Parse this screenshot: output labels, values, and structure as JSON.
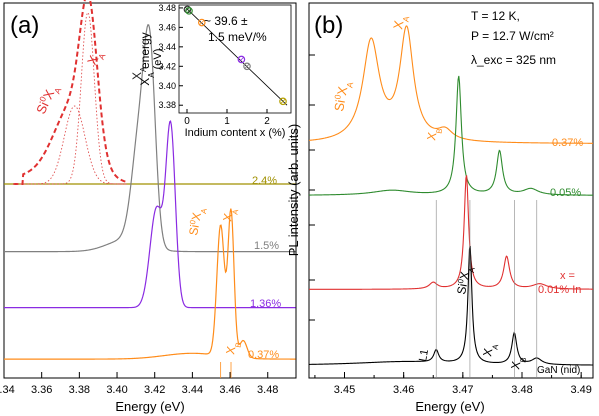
{
  "chart_data": [
    {
      "panel": "(a)",
      "type": "line",
      "xlabel": "Energy (eV)",
      "xlim": [
        3.34,
        3.495
      ],
      "xticks": [
        "3.34",
        "3.36",
        "3.38",
        "3.40",
        "3.42",
        "3.44",
        "3.46",
        "3.48"
      ],
      "series": [
        {
          "name": "2.4%",
          "color": "#e03030",
          "peak_energy": 3.384
        },
        {
          "name": "1.5%",
          "color": "#808080",
          "peak_energy": 3.418
        },
        {
          "name": "1.36%",
          "color": "#8a2be2",
          "peak_energy": 3.428
        },
        {
          "name": "0.37%",
          "color": "#ff8c1a",
          "peak_energy": 3.46
        }
      ],
      "annotations": [
        "Si⁰X_A",
        "X_A",
        "X_A",
        "Si⁰X_A",
        "X_A",
        "X_B"
      ],
      "inset": {
        "type": "scatter",
        "xlabel": "Indium content x (%)",
        "ylabel": "X_A energy (eV)",
        "xlim": [
          -0.2,
          2.6
        ],
        "ylim": [
          3.372,
          3.483
        ],
        "xticks": [
          "0",
          "1",
          "2"
        ],
        "yticks": [
          "3.38",
          "3.40",
          "3.42",
          "3.44",
          "3.46",
          "3.48"
        ],
        "points": [
          {
            "x": 0.01,
            "y": 3.4785,
            "color": "#333333"
          },
          {
            "x": 0.05,
            "y": 3.477,
            "color": "#2e8b2e"
          },
          {
            "x": 0.37,
            "y": 3.465,
            "color": "#ff8c1a"
          },
          {
            "x": 1.36,
            "y": 3.427,
            "color": "#8a2be2"
          },
          {
            "x": 1.5,
            "y": 3.42,
            "color": "#808080"
          },
          {
            "x": 2.4,
            "y": 3.384,
            "color": "#b5a000"
          }
        ],
        "fit": {
          "slope": -0.0396,
          "intercept": 3.479
        },
        "label": "~ 39.6 ±\n1.5 meV/%"
      }
    },
    {
      "panel": "(b)",
      "type": "line",
      "xlabel": "Energy (eV)",
      "ylabel": "PL intensity (arb. units)",
      "xlim": [
        3.444,
        3.492
      ],
      "xticks": [
        "3.45",
        "3.46",
        "3.47",
        "3.48",
        "3.49"
      ],
      "series": [
        {
          "name": "0.37%",
          "color": "#ff8c1a"
        },
        {
          "name": "0.05%",
          "color": "#2e8b2e"
        },
        {
          "name": "x =\n0.01% In",
          "color": "#e03030"
        },
        {
          "name": "GaN (nid)",
          "color": "#000000"
        }
      ],
      "conditions": [
        "T = 12 K,",
        "P = 12.7 W/cm²",
        "λ_exc = 325 nm"
      ],
      "annotations": [
        "Si⁰X_A",
        "X_A",
        "X_B",
        "Si⁰X_A",
        "X_A",
        "X_B",
        "L1"
      ]
    }
  ]
}
